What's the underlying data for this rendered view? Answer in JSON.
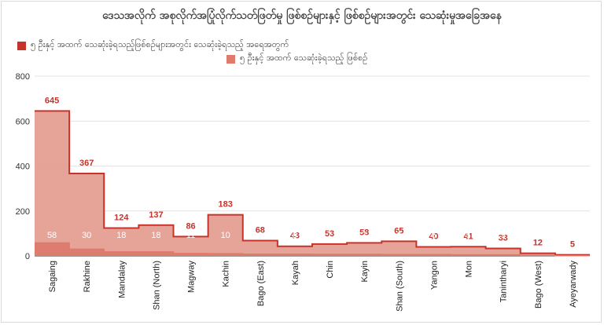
{
  "chart_data": {
    "type": "area",
    "title": "ဒေသအလိုက် အစုလိုက်အပြုံလိုက်သတ်ဖြတ်မှု ဖြစ်စဉ်များနှင့် ဖြစ်စဉ်များအတွင်း သေဆုံးမှုအခြေအနေ",
    "categories": [
      "Sagaing",
      "Rakhine",
      "Mandalay",
      "Shan (North)",
      "Magway",
      "Kachin",
      "Bago (East)",
      "Kayah",
      "Chin",
      "Kayin",
      "Shan (South)",
      "Yangon",
      "Mon",
      "Tanintharyi",
      "Bago (West)",
      "Ayeyarwady"
    ],
    "series": [
      {
        "name": "၅ ဦးနှင့် အထက် သေဆုံးခဲ့ရသည့်ဖြစ်စဉ်များအတွင်း သေဆုံးခဲ့ရသည့် အရေအတွက်",
        "color": "#c5332b",
        "fill": "#e39a8e",
        "values": [
          645,
          367,
          124,
          137,
          86,
          183,
          68,
          43,
          53,
          58,
          65,
          40,
          41,
          33,
          12,
          5
        ]
      },
      {
        "name": "၅ ဦးနှင့် အထက် သေဆုံးခဲ့ရသည့် ဖြစ်စဉ်",
        "color": "#e07a6a",
        "fill": "#d97767",
        "values": [
          58,
          30,
          18,
          18,
          11,
          10,
          8,
          8,
          7,
          7,
          6,
          6,
          5,
          5,
          2,
          1
        ]
      }
    ],
    "ylim": [
      0,
      800
    ],
    "yticks": [
      0,
      200,
      400,
      600,
      800
    ],
    "grid": true,
    "legend_position": "top"
  }
}
